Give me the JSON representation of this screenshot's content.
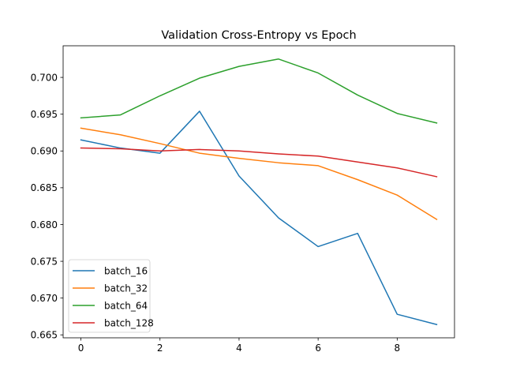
{
  "chart_data": {
    "type": "line",
    "title": "Validation Cross-Entropy vs Epoch",
    "xlabel": "",
    "ylabel": "",
    "x": [
      0,
      1,
      2,
      3,
      4,
      5,
      6,
      7,
      8,
      9
    ],
    "xlim": [
      -0.45,
      9.45
    ],
    "ylim": [
      0.6646,
      0.7043
    ],
    "xticks": [
      0,
      2,
      4,
      6,
      8
    ],
    "xtick_labels": [
      "0",
      "2",
      "4",
      "6",
      "8"
    ],
    "yticks": [
      0.665,
      0.67,
      0.675,
      0.68,
      0.685,
      0.69,
      0.695,
      0.7
    ],
    "ytick_labels": [
      "0.665",
      "0.670",
      "0.675",
      "0.680",
      "0.685",
      "0.690",
      "0.695",
      "0.700"
    ],
    "grid": false,
    "legend_position": "lower-left",
    "series": [
      {
        "name": "batch_16",
        "color": "#1f77b4",
        "values": [
          0.6915,
          0.6904,
          0.6897,
          0.6954,
          0.6866,
          0.6809,
          0.677,
          0.6788,
          0.6678,
          0.6664
        ]
      },
      {
        "name": "batch_32",
        "color": "#ff7f0e",
        "values": [
          0.6931,
          0.6922,
          0.691,
          0.6897,
          0.689,
          0.6884,
          0.688,
          0.6861,
          0.684,
          0.6807
        ]
      },
      {
        "name": "batch_64",
        "color": "#2ca02c",
        "values": [
          0.6945,
          0.6949,
          0.6975,
          0.6999,
          0.7015,
          0.7025,
          0.7006,
          0.6976,
          0.6951,
          0.6938
        ]
      },
      {
        "name": "batch_128",
        "color": "#d62728",
        "values": [
          0.6904,
          0.6903,
          0.69,
          0.6902,
          0.69,
          0.6896,
          0.6893,
          0.6885,
          0.6877,
          0.6865
        ]
      }
    ]
  }
}
